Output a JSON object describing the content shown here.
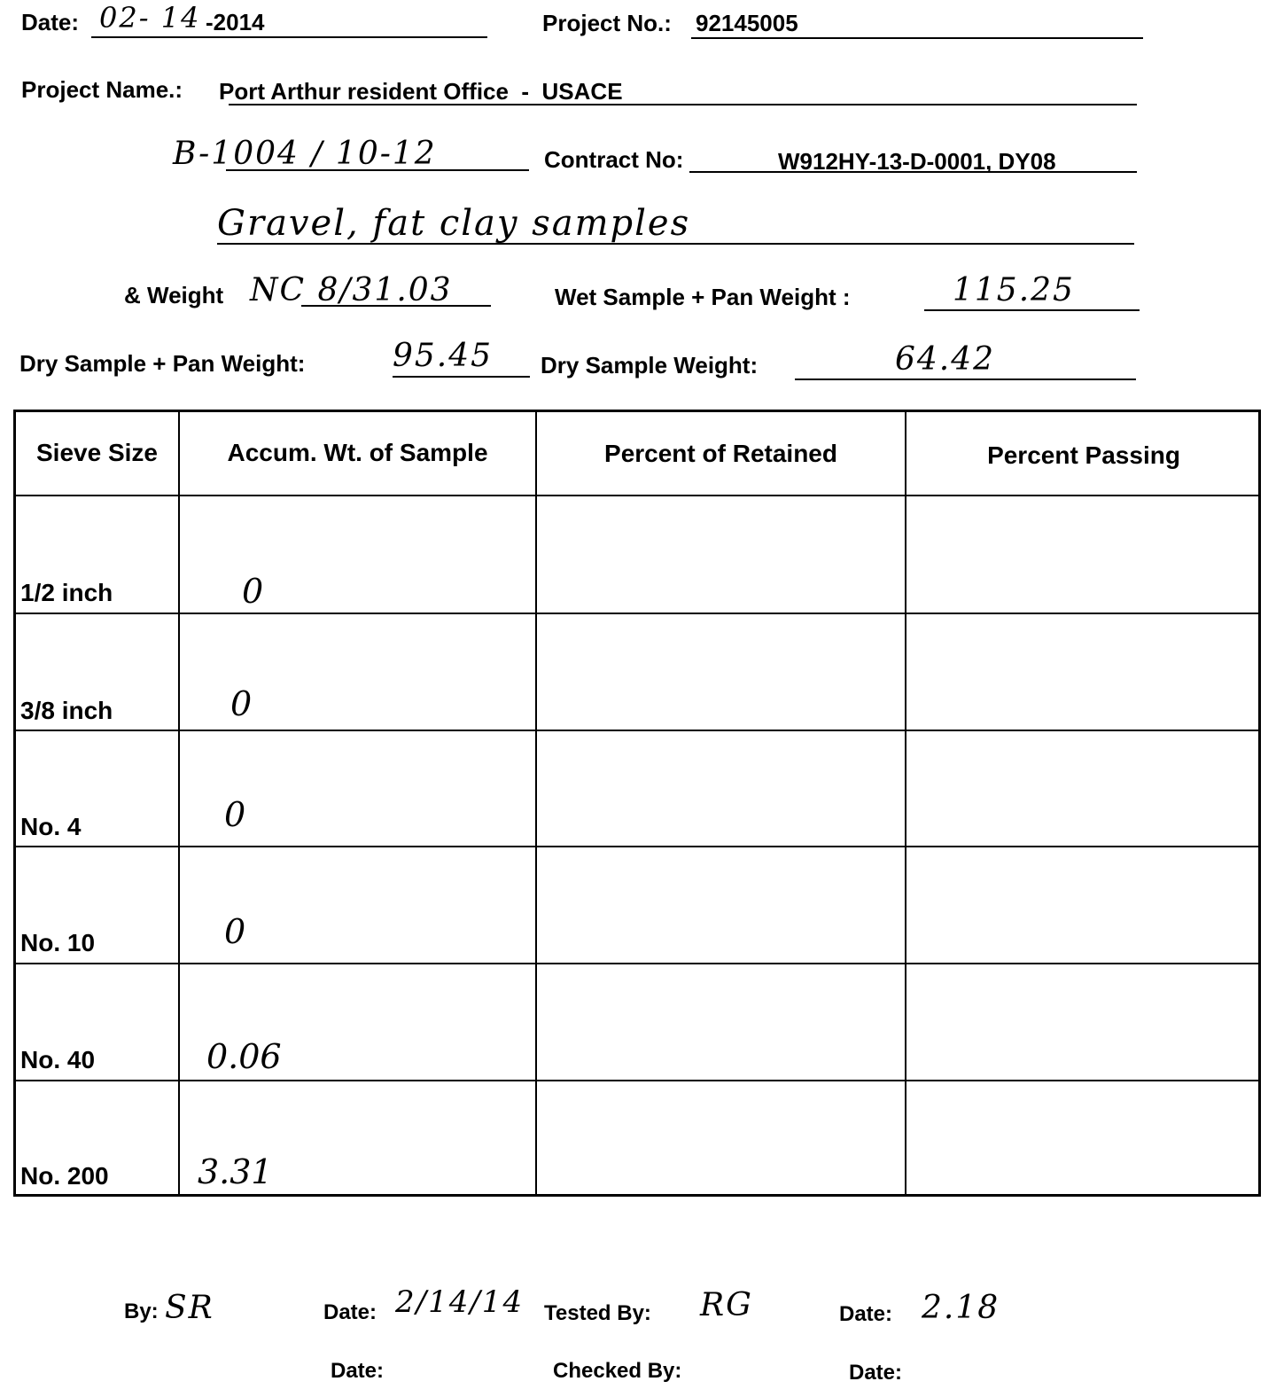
{
  "header": {
    "date_label": "Date:",
    "date_handwritten": "02- 14",
    "date_printed": "-2014",
    "project_no_label": "Project No.:",
    "project_no": "92145005",
    "project_name_label": "Project Name.:",
    "project_name": "Port Arthur resident Office  -  USACE",
    "boring_sample": "B-1004 / 10-12",
    "contract_no_label": "Contract No:",
    "contract_no": "W912HY-13-D-0001, DY08",
    "description": "Gravel, fat clay samples",
    "weight_label": "& Weight",
    "weight_value": "NC 8/31.03",
    "wet_label": "Wet Sample + Pan Weight :",
    "wet_value": "115.25",
    "dry_pan_label": "Dry Sample + Pan Weight:",
    "dry_pan_value": "95.45",
    "dry_label": "Dry Sample Weight:",
    "dry_value": "64.42"
  },
  "table": {
    "columns": [
      "Sieve Size",
      "Accum. Wt. of Sample",
      "Percent of Retained",
      "Percent Passing"
    ],
    "rows": [
      {
        "sieve": "1/2 inch",
        "accum": "0",
        "retained": "",
        "passing": ""
      },
      {
        "sieve": "3/8 inch",
        "accum": "0",
        "retained": "",
        "passing": ""
      },
      {
        "sieve": "No. 4",
        "accum": "0",
        "retained": "",
        "passing": ""
      },
      {
        "sieve": "No. 10",
        "accum": "0",
        "retained": "",
        "passing": ""
      },
      {
        "sieve": "No. 40",
        "accum": "0.06",
        "retained": "",
        "passing": ""
      },
      {
        "sieve": "No. 200",
        "accum": "3.31",
        "retained": "",
        "passing": ""
      }
    ]
  },
  "footer": {
    "by_label": "By:",
    "by_value": "SR",
    "date1_label": "Date:",
    "date1_value": "2/14/14",
    "tested_by_label": "Tested By:",
    "tested_by_value": "RG",
    "date2_label": "Date:",
    "date2_value": "2.18",
    "date3_label": "Date:",
    "checked_by_label": "Checked By:",
    "date4_label": "Date:"
  }
}
